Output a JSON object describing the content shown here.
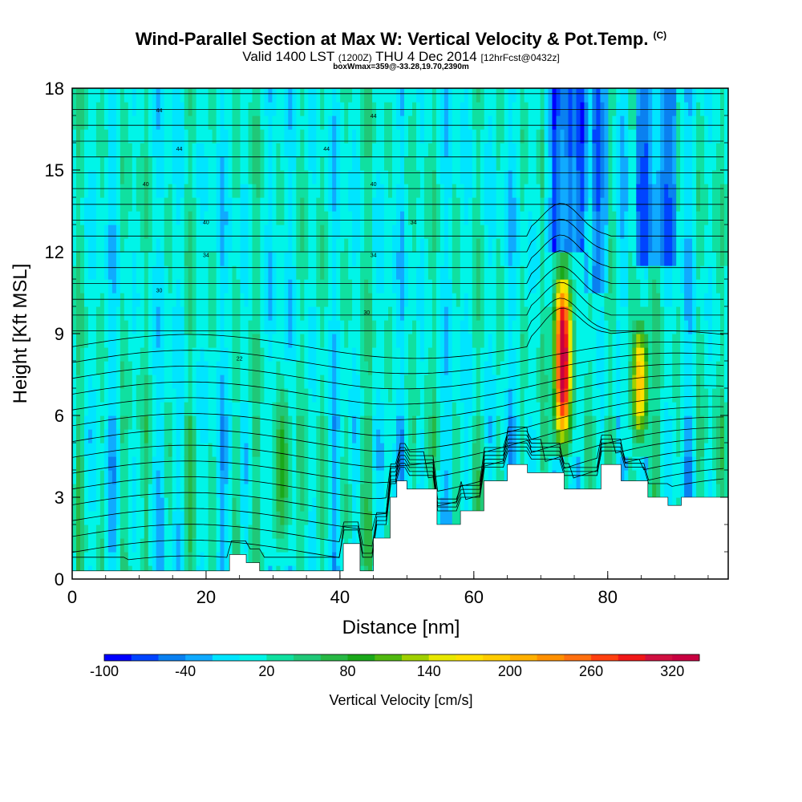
{
  "header": {
    "title": "Wind-Parallel Section at Max W: Vertical Velocity & Pot.Temp.",
    "copyright": "(C)",
    "subtitle_main": "Valid 1400 LST",
    "subtitle_utc": "(1200Z)",
    "subtitle_date": "THU 4 Dec 2014",
    "subtitle_fcst": "[12hrFcst@0432z]",
    "boxinfo": "boxWmax=359@-33.28,19.70,2390m"
  },
  "chart_data": {
    "type": "heatmap",
    "title": "Wind-Parallel Section at Max W: Vertical Velocity & Pot.Temp.",
    "xlabel": "Distance [nm]",
    "ylabel": "Height [Kft MSL]",
    "xlim": [
      0,
      98
    ],
    "ylim": [
      0,
      18
    ],
    "xticks": [
      0,
      20,
      40,
      60,
      80
    ],
    "yticks": [
      0,
      3,
      6,
      9,
      12,
      15,
      18
    ],
    "colorbar": {
      "label": "Vertical Velocity [cm/s]",
      "tick_labels": [
        "-100",
        "-40",
        "20",
        "80",
        "140",
        "200",
        "260",
        "320"
      ],
      "tick_values": [
        -100,
        -40,
        20,
        80,
        140,
        200,
        260,
        320
      ],
      "range": [
        -100,
        350
      ],
      "bin_width": 20,
      "colors": [
        "#0000ff",
        "#0044ff",
        "#0a80f0",
        "#10aaff",
        "#00e5ff",
        "#00f5e8",
        "#10e0a0",
        "#20c878",
        "#28b845",
        "#1aa81a",
        "#50b810",
        "#a0d000",
        "#e8e800",
        "#ffe000",
        "#ffcc00",
        "#ffb000",
        "#ff9000",
        "#ff7010",
        "#ff4010",
        "#f01818",
        "#d01040",
        "#c80040"
      ]
    },
    "updraft_columns": [
      {
        "distance": 31,
        "peak_cm_s": 90,
        "base_kft": 0.3,
        "top_kft": 7.5
      },
      {
        "distance": 73,
        "peak_cm_s": 359,
        "base_kft": 4.2,
        "top_kft": 11.5
      },
      {
        "distance": 84.5,
        "peak_cm_s": 200,
        "base_kft": 4.5,
        "top_kft": 9.5
      }
    ],
    "terrain_kft": [
      {
        "x": 0,
        "h": 0.3
      },
      {
        "x": 20,
        "h": 0.3
      },
      {
        "x": 23.5,
        "h": 0.9
      },
      {
        "x": 26,
        "h": 0.6
      },
      {
        "x": 28,
        "h": 0.3
      },
      {
        "x": 34,
        "h": 0.3
      },
      {
        "x": 39.5,
        "h": 0.3
      },
      {
        "x": 40.5,
        "h": 1.3
      },
      {
        "x": 43,
        "h": 0.3
      },
      {
        "x": 45,
        "h": 1.5
      },
      {
        "x": 47.5,
        "h": 3.0
      },
      {
        "x": 48.5,
        "h": 3.6
      },
      {
        "x": 50,
        "h": 3.3
      },
      {
        "x": 53,
        "h": 3.3
      },
      {
        "x": 54.5,
        "h": 2.0
      },
      {
        "x": 58,
        "h": 2.5
      },
      {
        "x": 61.5,
        "h": 3.6
      },
      {
        "x": 65,
        "h": 4.2
      },
      {
        "x": 68,
        "h": 3.9
      },
      {
        "x": 72,
        "h": 3.9
      },
      {
        "x": 73.5,
        "h": 3.3
      },
      {
        "x": 76,
        "h": 3.3
      },
      {
        "x": 79,
        "h": 4.2
      },
      {
        "x": 82,
        "h": 3.6
      },
      {
        "x": 86,
        "h": 3.0
      },
      {
        "x": 89,
        "h": 2.7
      },
      {
        "x": 91,
        "h": 3.0
      },
      {
        "x": 98,
        "h": 3.0
      }
    ],
    "theta_isentropes_note": "Potential temperature contours (black lines) labeled in Kelvin offsets",
    "theta_labels_visible": [
      "44",
      "44",
      "44",
      "44",
      "40",
      "40",
      "40",
      "34",
      "34",
      "34",
      "30",
      "30",
      "22"
    ]
  }
}
